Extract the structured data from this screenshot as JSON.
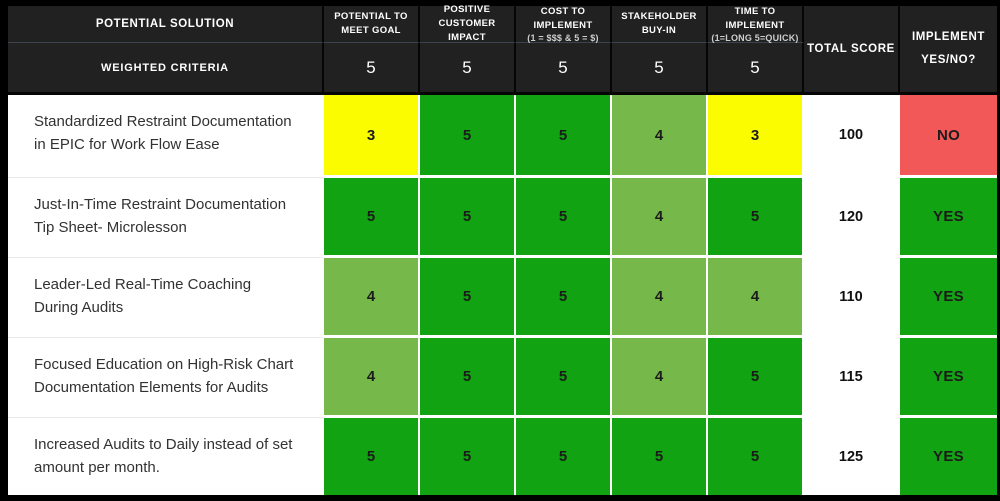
{
  "table": {
    "solution_header": "POTENTIAL SOLUTION",
    "weighted_label": "WEIGHTED CRITERIA",
    "criteria": [
      {
        "title": "POTENTIAL TO MEET GOAL",
        "subtitle": "",
        "weight": "5"
      },
      {
        "title": "POSITIVE CUSTOMER IMPACT",
        "subtitle": "",
        "weight": "5"
      },
      {
        "title": "COST TO IMPLEMENT",
        "subtitle": "(1 = $$$ & 5 = $)",
        "weight": "5"
      },
      {
        "title": "STAKEHOLDER BUY-IN",
        "subtitle": "",
        "weight": "5"
      },
      {
        "title": "TIME TO IMPLEMENT",
        "subtitle": "(1=LONG 5=QUICK)",
        "weight": "5"
      }
    ],
    "total_header": "TOTAL SCORE",
    "implement_header_line1": "IMPLEMENT",
    "implement_header_line2": "YES/NO?",
    "rows": [
      {
        "solution": "Standardized Restraint Documentation in EPIC for Work Flow Ease",
        "scores": [
          3,
          5,
          5,
          4,
          3
        ],
        "total": "100",
        "decision": "NO"
      },
      {
        "solution": "Just-In-Time Restraint Documentation Tip Sheet- Microlesson",
        "scores": [
          5,
          5,
          5,
          4,
          5
        ],
        "total": "120",
        "decision": "YES"
      },
      {
        "solution": "Leader-Led Real-Time Coaching During Audits",
        "scores": [
          4,
          5,
          5,
          4,
          4
        ],
        "total": "110",
        "decision": "YES"
      },
      {
        "solution": "Focused Education on High-Risk Chart Documentation Elements for Audits",
        "scores": [
          4,
          5,
          5,
          4,
          5
        ],
        "total": "115",
        "decision": "YES"
      },
      {
        "solution": "Increased Audits to Daily instead of set amount per month.",
        "scores": [
          5,
          5,
          5,
          5,
          5
        ],
        "total": "125",
        "decision": "YES"
      }
    ]
  },
  "colors": {
    "score_5": "#12a312",
    "score_4": "#77b84b",
    "score_3": "#fcfc00",
    "decision_yes": "#12a312",
    "decision_no": "#f25858",
    "header_bg": "#212121",
    "score_text": "#1b1b1b"
  }
}
